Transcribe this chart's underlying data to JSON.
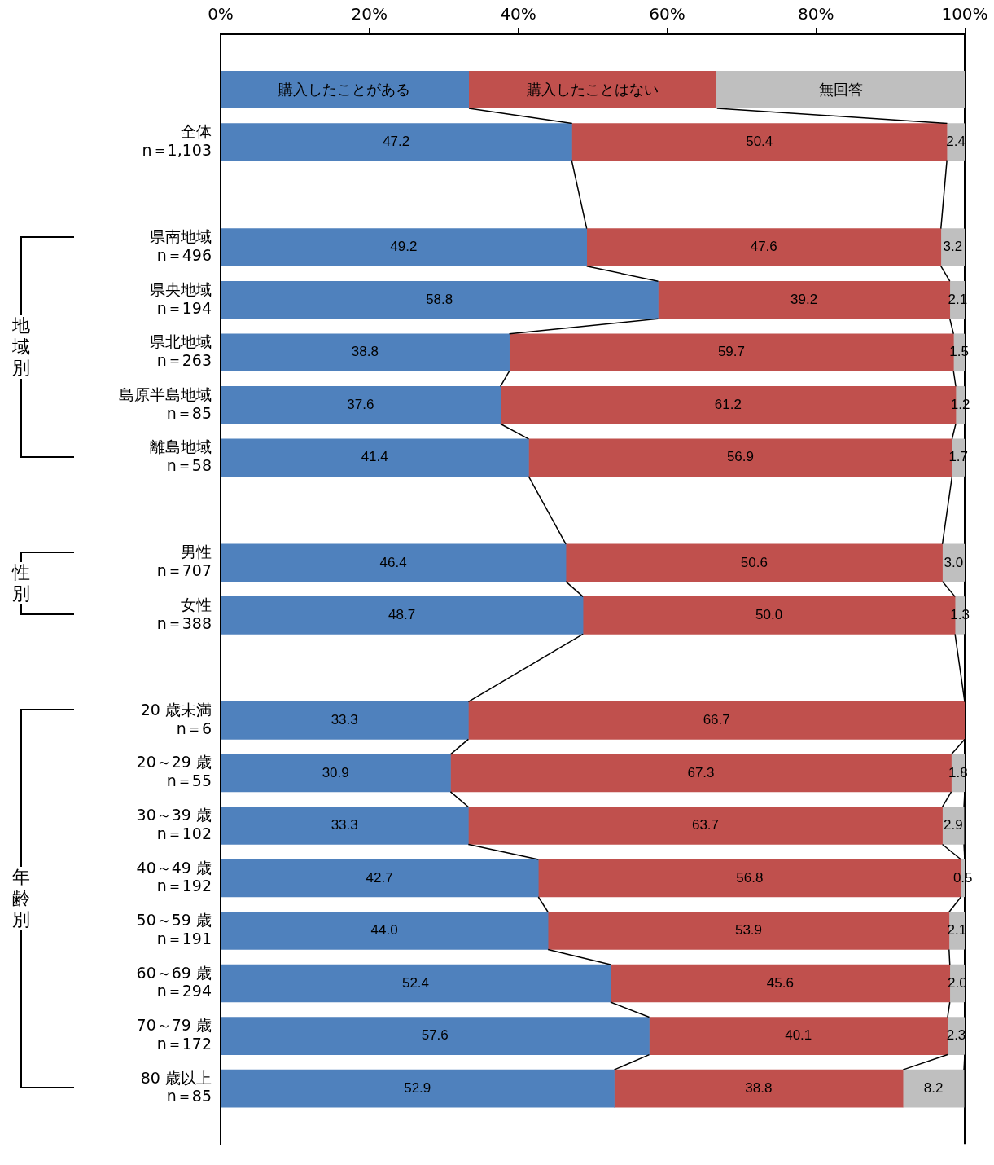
{
  "chart_data": {
    "type": "bar",
    "orientation": "horizontal",
    "stacked": true,
    "legend": "top",
    "grid": false,
    "categories": [
      "全体\nn＝1,103",
      null,
      "県南地域\nn＝496",
      "県央地域\nn＝194",
      "県北地域\nn＝263",
      "島原半島地域\nn＝85",
      "離島地域\nn＝58",
      null,
      "男性\nn＝707",
      "女性\nn＝388",
      null,
      "20 歳未満\nn＝6",
      "20～29 歳\nn＝55",
      "30～39 歳\nn＝102",
      "40～49 歳\nn＝192",
      "50～59 歳\nn＝191",
      "60～69 歳\nn＝294",
      "70～79 歳\nn＝172",
      "80 歳以上\nn＝85"
    ],
    "series": [
      {
        "name": "購入したことがある",
        "color": "#4f81bd",
        "values": [
          47.2,
          null,
          49.2,
          58.8,
          38.8,
          37.6,
          41.4,
          null,
          46.4,
          48.7,
          null,
          33.3,
          30.9,
          33.3,
          42.7,
          44.0,
          52.4,
          57.6,
          52.9
        ],
        "value_labels": [
          "47.2",
          null,
          "49.2",
          "58.8",
          "38.8",
          "37.6",
          "41.4",
          null,
          "46.4",
          "48.7",
          null,
          "33.3",
          "30.9",
          "33.3",
          "42.7",
          "44.0",
          "52.4",
          "57.6",
          "52.9"
        ]
      },
      {
        "name": "購入したことはない",
        "color": "#c0504d",
        "values": [
          50.4,
          null,
          47.6,
          39.2,
          59.7,
          61.2,
          56.9,
          null,
          50.6,
          50.0,
          null,
          66.7,
          67.3,
          63.7,
          56.8,
          53.9,
          45.6,
          40.1,
          38.8
        ],
        "value_labels": [
          "50.4",
          null,
          "47.6",
          "39.2",
          "59.7",
          "61.2",
          "56.9",
          null,
          "50.6",
          "50.0",
          null,
          "66.7",
          "67.3",
          "63.7",
          "56.8",
          "53.9",
          "45.6",
          "40.1",
          "38.8"
        ]
      },
      {
        "name": "無回答",
        "color": "#bfbfbf",
        "values": [
          2.4,
          null,
          3.2,
          2.1,
          1.5,
          1.2,
          1.7,
          null,
          3.0,
          1.3,
          null,
          null,
          1.8,
          2.9,
          0.5,
          2.1,
          2.0,
          2.3,
          8.2
        ],
        "value_labels": [
          "2.4",
          null,
          "3.2",
          "2.1",
          "1.5",
          "1.2",
          "1.7",
          null,
          "3.0",
          "1.3",
          null,
          null,
          "1.8",
          "2.9",
          "0.5",
          "2.1",
          "2.0",
          "2.3",
          "8.2"
        ]
      }
    ],
    "xlim": [
      0,
      100
    ],
    "xticks": [
      {
        "value": 0,
        "label": "0%"
      },
      {
        "value": 20,
        "label": "20%"
      },
      {
        "value": 40,
        "label": "40%"
      },
      {
        "value": 60,
        "label": "60%"
      },
      {
        "value": 80,
        "label": "80%"
      },
      {
        "value": 100,
        "label": "100%"
      }
    ],
    "annotations": [
      "地域別",
      "性別",
      "年齢別"
    ]
  }
}
